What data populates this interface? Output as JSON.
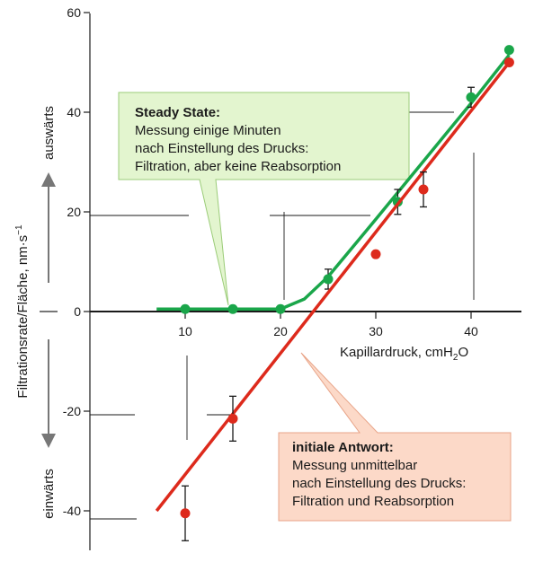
{
  "chart_data": {
    "type": "line",
    "ylabel": "Filtrationsrate/Fläche, nm·s",
    "ylabel_sup": "−1",
    "xlabel": "Kapillardruck, cmH",
    "xlabel_sub": "2",
    "xlabel_tail": "O",
    "direction_up": "auswärts",
    "direction_down": "einwärts",
    "xlim": [
      0,
      47
    ],
    "ylim": [
      -46,
      60
    ],
    "x_ticks": [
      10,
      20,
      30,
      40
    ],
    "y_ticks": [
      -40,
      -20,
      0,
      20,
      40,
      60
    ],
    "y_tick_labels": [
      "-40",
      "-20",
      "0",
      "20",
      "40",
      "60"
    ],
    "grid": false,
    "series": [
      {
        "color": "#1aa64a",
        "fit_line": [
          [
            7,
            0.5
          ],
          [
            20,
            0.5
          ],
          [
            22.5,
            2.5
          ],
          [
            25,
            7
          ],
          [
            30,
            18.5
          ],
          [
            40,
            41.8
          ],
          [
            44,
            51.5
          ]
        ],
        "points": [
          {
            "x": 10,
            "y": 0.5
          },
          {
            "x": 15,
            "y": 0.5
          },
          {
            "x": 20,
            "y": 0.5
          },
          {
            "x": 25,
            "y": 6.5,
            "err": 2
          },
          {
            "x": 32.3,
            "y": 22,
            "err": 2.5
          },
          {
            "x": 40,
            "y": 43,
            "err": 2
          },
          {
            "x": 44,
            "y": 52.5
          }
        ]
      },
      {
        "color": "#dd2a1c",
        "fit_line": [
          [
            7,
            -40
          ],
          [
            44,
            50
          ]
        ],
        "points": [
          {
            "x": 10,
            "y": -40.5,
            "err": 5.5
          },
          {
            "x": 15,
            "y": -21.5,
            "err": 4.5
          },
          {
            "x": 30,
            "y": 11.5
          },
          {
            "x": 35,
            "y": 24.5,
            "err": 3.5
          },
          {
            "x": 44,
            "y": 50
          }
        ]
      }
    ],
    "annotations": [
      {
        "title": "Steady State:",
        "lines": [
          "Messung einige Minuten",
          "nach Einstellung des Drucks:",
          "Filtration, aber keine Reabsorption"
        ],
        "fill": "#e3f5cf",
        "stroke": "#9bcc78"
      },
      {
        "title": "initiale Antwort:",
        "lines": [
          "Messung unmittelbar",
          "nach Einstellung des Drucks:",
          "Filtration und Reabsorption"
        ],
        "fill": "#fcd9c8",
        "stroke": "#e8a488"
      }
    ]
  }
}
